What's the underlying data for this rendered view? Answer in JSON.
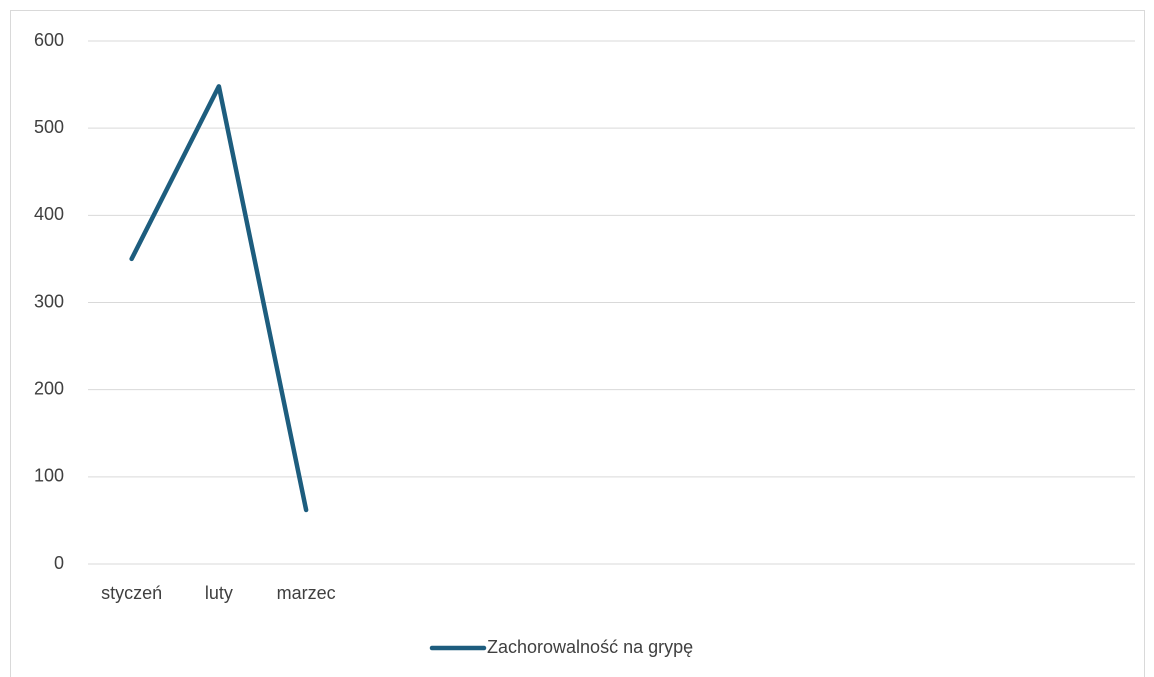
{
  "chart_data": {
    "type": "line",
    "categories": [
      "styczeń",
      "luty",
      "marzec",
      null,
      null,
      null,
      null,
      null,
      null,
      null,
      null,
      null
    ],
    "series": [
      {
        "name": "Zachorowalność na grypę",
        "color": "#1d5d7e",
        "values": [
          350,
          548,
          62,
          null,
          null,
          null,
          null,
          null,
          null,
          null,
          null,
          null
        ]
      }
    ],
    "ylim": [
      0,
      600
    ],
    "yticks": [
      0,
      100,
      200,
      300,
      400,
      500,
      600
    ],
    "grid": true,
    "legend": "bottom"
  }
}
